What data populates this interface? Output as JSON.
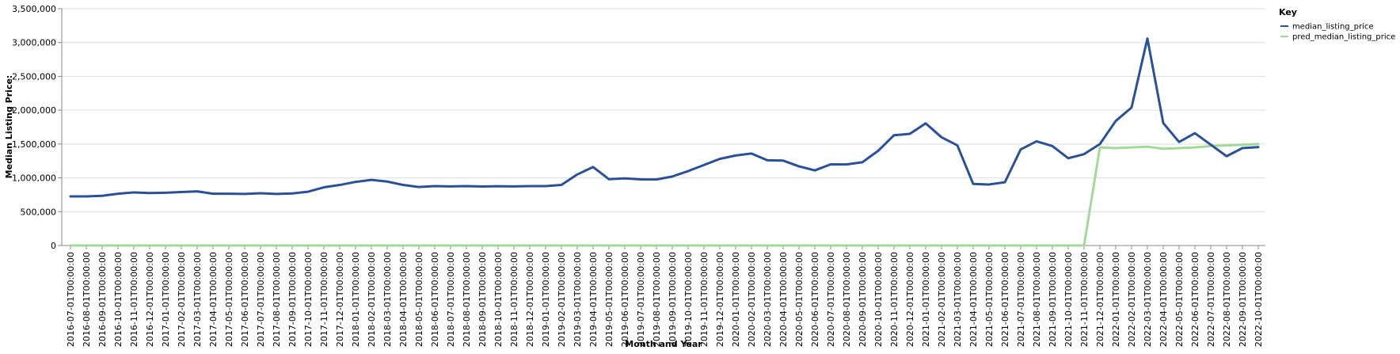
{
  "chart_data": {
    "type": "line",
    "xlabel": "Month and Year",
    "ylabel": "Median Listing Price:",
    "ylim": [
      0,
      3500000
    ],
    "y_ticks": [
      0,
      500000,
      1000000,
      1500000,
      2000000,
      2500000,
      3000000,
      3500000
    ],
    "y_tick_labels": [
      "0",
      "500,000",
      "1,000,000",
      "1,500,000",
      "2,000,000",
      "2,500,000",
      "3,000,000",
      "3,500,000"
    ],
    "grid": true,
    "legend_title": "Key",
    "legend_position": "top-right",
    "x": [
      "2016-07-01T00:00:00",
      "2016-08-01T00:00:00",
      "2016-09-01T00:00:00",
      "2016-10-01T00:00:00",
      "2016-11-01T00:00:00",
      "2016-12-01T00:00:00",
      "2017-01-01T00:00:00",
      "2017-02-01T00:00:00",
      "2017-03-01T00:00:00",
      "2017-04-01T00:00:00",
      "2017-05-01T00:00:00",
      "2017-06-01T00:00:00",
      "2017-07-01T00:00:00",
      "2017-08-01T00:00:00",
      "2017-09-01T00:00:00",
      "2017-10-01T00:00:00",
      "2017-11-01T00:00:00",
      "2017-12-01T00:00:00",
      "2018-01-01T00:00:00",
      "2018-02-01T00:00:00",
      "2018-03-01T00:00:00",
      "2018-04-01T00:00:00",
      "2018-05-01T00:00:00",
      "2018-06-01T00:00:00",
      "2018-07-01T00:00:00",
      "2018-08-01T00:00:00",
      "2018-09-01T00:00:00",
      "2018-10-01T00:00:00",
      "2018-11-01T00:00:00",
      "2018-12-01T00:00:00",
      "2019-01-01T00:00:00",
      "2019-02-01T00:00:00",
      "2019-03-01T00:00:00",
      "2019-04-01T00:00:00",
      "2019-05-01T00:00:00",
      "2019-06-01T00:00:00",
      "2019-07-01T00:00:00",
      "2019-08-01T00:00:00",
      "2019-09-01T00:00:00",
      "2019-10-01T00:00:00",
      "2019-11-01T00:00:00",
      "2019-12-01T00:00:00",
      "2020-01-01T00:00:00",
      "2020-02-01T00:00:00",
      "2020-03-01T00:00:00",
      "2020-04-01T00:00:00",
      "2020-05-01T00:00:00",
      "2020-06-01T00:00:00",
      "2020-07-01T00:00:00",
      "2020-08-01T00:00:00",
      "2020-09-01T00:00:00",
      "2020-10-01T00:00:00",
      "2020-11-01T00:00:00",
      "2020-12-01T00:00:00",
      "2021-01-01T00:00:00",
      "2021-02-01T00:00:00",
      "2021-03-01T00:00:00",
      "2021-04-01T00:00:00",
      "2021-05-01T00:00:00",
      "2021-06-01T00:00:00",
      "2021-07-01T00:00:00",
      "2021-08-01T00:00:00",
      "2021-09-01T00:00:00",
      "2021-10-01T00:00:00",
      "2021-11-01T00:00:00",
      "2021-12-01T00:00:00",
      "2022-01-01T00:00:00",
      "2022-02-01T00:00:00",
      "2022-03-01T00:00:00",
      "2022-04-01T00:00:00",
      "2022-05-01T00:00:00",
      "2022-06-01T00:00:00",
      "2022-07-01T00:00:00",
      "2022-08-01T00:00:00",
      "2022-09-01T00:00:00",
      "2022-10-01T00:00:00"
    ],
    "series": [
      {
        "name": "median_listing_price",
        "color": "#2a5198",
        "values": [
          725000,
          725000,
          735000,
          765000,
          785000,
          775000,
          780000,
          790000,
          800000,
          765000,
          765000,
          762000,
          772000,
          762000,
          770000,
          795000,
          860000,
          895000,
          940000,
          970000,
          945000,
          895000,
          865000,
          878000,
          874000,
          878000,
          872000,
          876000,
          874000,
          878000,
          878000,
          895000,
          1050000,
          1160000,
          980000,
          992000,
          978000,
          976000,
          1020000,
          1100000,
          1190000,
          1280000,
          1330000,
          1360000,
          1260000,
          1255000,
          1170000,
          1110000,
          1200000,
          1198000,
          1230000,
          1400000,
          1630000,
          1650000,
          1805000,
          1600000,
          1480000,
          910000,
          902000,
          935000,
          1420000,
          1540000,
          1470000,
          1290000,
          1350000,
          1500000,
          1840000,
          2040000,
          3060000,
          1810000,
          1530000,
          1660000,
          1490000,
          1320000,
          1440000,
          1455000
        ]
      },
      {
        "name": "pred_median_listing_price",
        "color": "#a1d99b",
        "values": [
          0,
          0,
          0,
          0,
          0,
          0,
          0,
          0,
          0,
          0,
          0,
          0,
          0,
          0,
          0,
          0,
          0,
          0,
          0,
          0,
          0,
          0,
          0,
          0,
          0,
          0,
          0,
          0,
          0,
          0,
          0,
          0,
          0,
          0,
          0,
          0,
          0,
          0,
          0,
          0,
          0,
          0,
          0,
          0,
          0,
          0,
          0,
          0,
          0,
          0,
          0,
          0,
          0,
          0,
          0,
          0,
          0,
          0,
          0,
          0,
          0,
          0,
          0,
          0,
          0,
          1450000,
          1440000,
          1450000,
          1460000,
          1430000,
          1440000,
          1450000,
          1470000,
          1480000,
          1490000,
          1500000
        ]
      }
    ]
  }
}
